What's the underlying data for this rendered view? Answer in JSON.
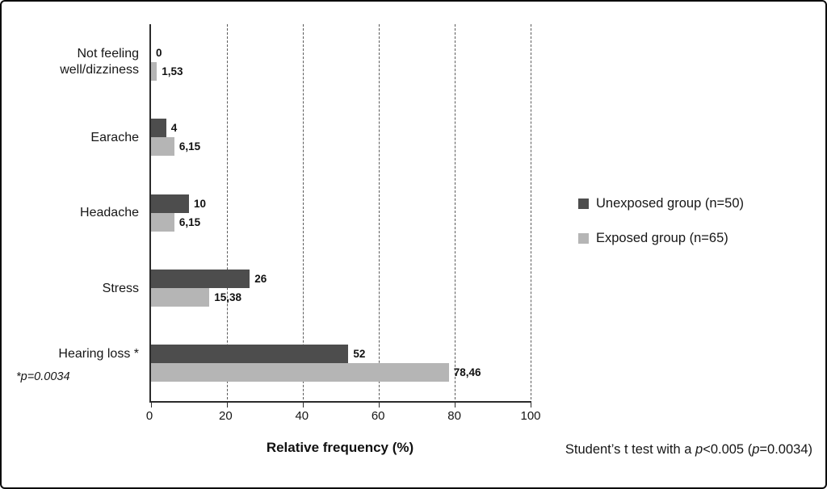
{
  "chart_data": {
    "type": "bar",
    "orientation": "horizontal",
    "categories": [
      "Not feeling well/dizziness",
      "Earache",
      "Headache",
      "Stress",
      "Hearing loss *"
    ],
    "category_sublabels": [
      "",
      "",
      "",
      "",
      "*p=0.0034"
    ],
    "series": [
      {
        "name": "Unexposed group (n=50)",
        "color": "#4d4d4d",
        "values": [
          0,
          4,
          10,
          26,
          52
        ],
        "labels": [
          "0",
          "4",
          "10",
          "26",
          "52"
        ]
      },
      {
        "name": "Exposed group (n=65)",
        "color": "#b5b5b5",
        "values": [
          1.53,
          6.15,
          6.15,
          15.38,
          78.46
        ],
        "labels": [
          "1,53",
          "6,15",
          "6,15",
          "15,38",
          "78,46"
        ]
      }
    ],
    "xlabel": "Relative frequency (%)",
    "xlim": [
      0,
      100
    ],
    "xticks": [
      0,
      20,
      40,
      60,
      80,
      100
    ],
    "grid": "dashed-vertical",
    "legend_position": "right"
  },
  "footnote": {
    "segments": [
      {
        "text": "Student’s t test with a ",
        "italic": false
      },
      {
        "text": "p",
        "italic": true
      },
      {
        "text": "<0.005 (",
        "italic": false
      },
      {
        "text": "p",
        "italic": true
      },
      {
        "text": "=0.0034)",
        "italic": false
      }
    ]
  }
}
